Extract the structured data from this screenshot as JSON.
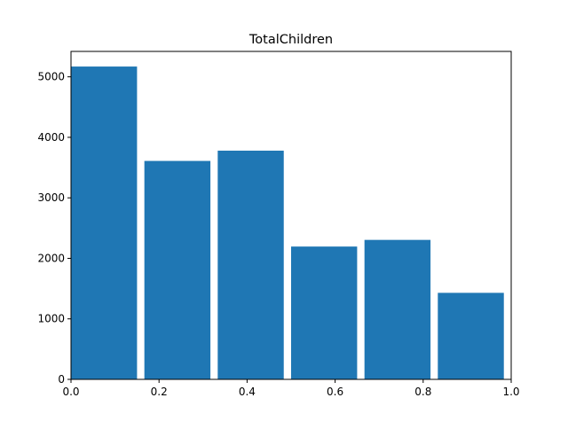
{
  "chart_data": {
    "type": "bar",
    "title": "TotalChildren",
    "xlabel": "",
    "ylabel": "",
    "x": [
      0.0,
      0.1667,
      0.3333,
      0.5,
      0.6667,
      0.8333
    ],
    "bin_width": 0.15,
    "values": [
      5170,
      3610,
      3780,
      2195,
      2305,
      1430
    ],
    "xlim": [
      0.0,
      1.0
    ],
    "ylim": [
      0,
      5420
    ],
    "xticks": [
      "0.0",
      "0.2",
      "0.4",
      "0.6",
      "0.8",
      "1.0"
    ],
    "yticks": [
      "0",
      "1000",
      "2000",
      "3000",
      "4000",
      "5000"
    ],
    "bar_color": "#1f77b4",
    "grid": false,
    "legend": "none"
  }
}
